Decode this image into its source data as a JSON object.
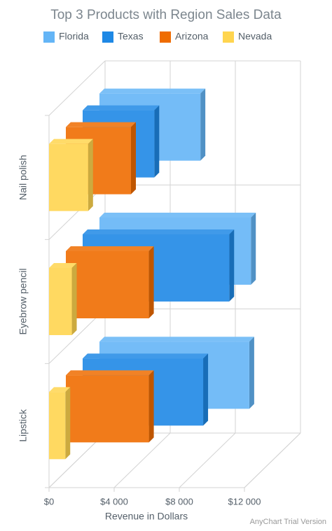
{
  "chart_data": {
    "type": "bar3d",
    "title": "Top 3 Products with Region Sales Data",
    "categories": [
      "Nail polish",
      "Eyebrow pencil",
      "Lipstick"
    ],
    "series": [
      {
        "name": "Florida",
        "color": "#64b5f6",
        "values": [
          6200,
          9300,
          9200
        ]
      },
      {
        "name": "Texas",
        "color": "#1e88e5",
        "values": [
          4400,
          9000,
          7400
        ]
      },
      {
        "name": "Arizona",
        "color": "#ef6c00",
        "values": [
          4000,
          5100,
          5100
        ]
      },
      {
        "name": "Nevada",
        "color": "#ffd54f",
        "values": [
          2400,
          1400,
          1000
        ]
      }
    ],
    "x_label": "Revenue in Dollars",
    "xlim": [
      0,
      12000
    ],
    "xticks": [
      {
        "value": 0,
        "label": "$0"
      },
      {
        "value": 4000,
        "label": "$4 000"
      },
      {
        "value": 8000,
        "label": "$8 000"
      },
      {
        "value": 12000,
        "label": "$12 000"
      }
    ],
    "grid": true,
    "watermark": "AnyChart Trial Version"
  }
}
